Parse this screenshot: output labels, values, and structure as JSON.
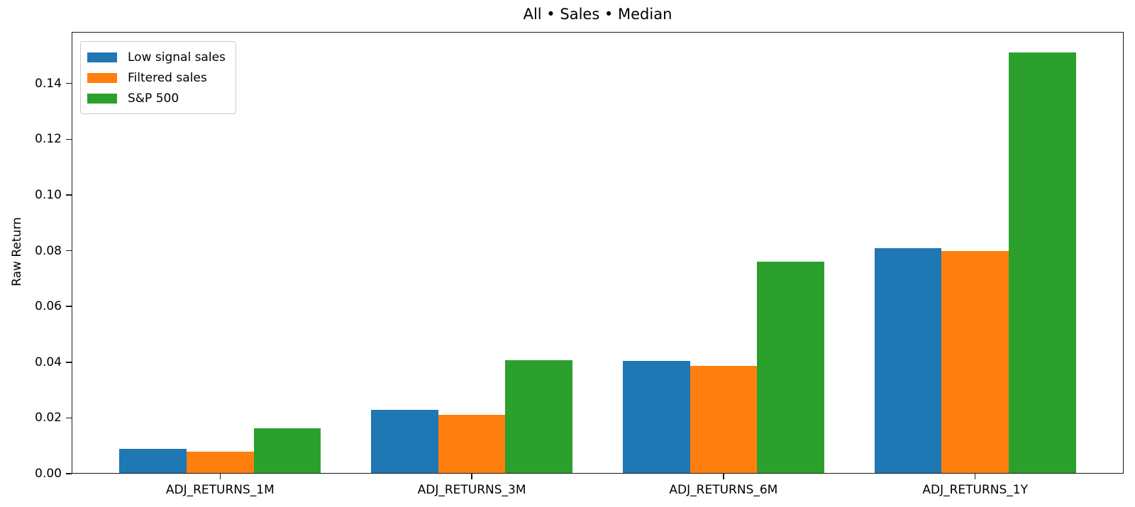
{
  "chart_data": {
    "type": "bar",
    "title": "All • Sales • Median",
    "ylabel": "Raw Return",
    "categories": [
      "ADJ_RETURNS_1M",
      "ADJ_RETURNS_3M",
      "ADJ_RETURNS_6M",
      "ADJ_RETURNS_1Y"
    ],
    "series": [
      {
        "name": "Low signal sales",
        "color": "#1f77b4",
        "values": [
          0.0088,
          0.023,
          0.0404,
          0.081
        ]
      },
      {
        "name": "Filtered sales",
        "color": "#ff7f0e",
        "values": [
          0.0079,
          0.021,
          0.0387,
          0.08
        ]
      },
      {
        "name": "S&P 500",
        "color": "#2ca02c",
        "values": [
          0.0162,
          0.0408,
          0.076,
          0.151
        ]
      }
    ],
    "yticks": {
      "values": [
        0.0,
        0.02,
        0.04,
        0.06,
        0.08,
        0.1,
        0.12,
        0.14
      ],
      "labels": [
        "0.00",
        "0.02",
        "0.04",
        "0.06",
        "0.08",
        "0.10",
        "0.12",
        "0.14"
      ]
    },
    "ylim": [
      0,
      0.1585
    ],
    "grid": false,
    "legend_position": "upper left",
    "background": "#ffffff",
    "spine_color": "#1a1a1a"
  }
}
